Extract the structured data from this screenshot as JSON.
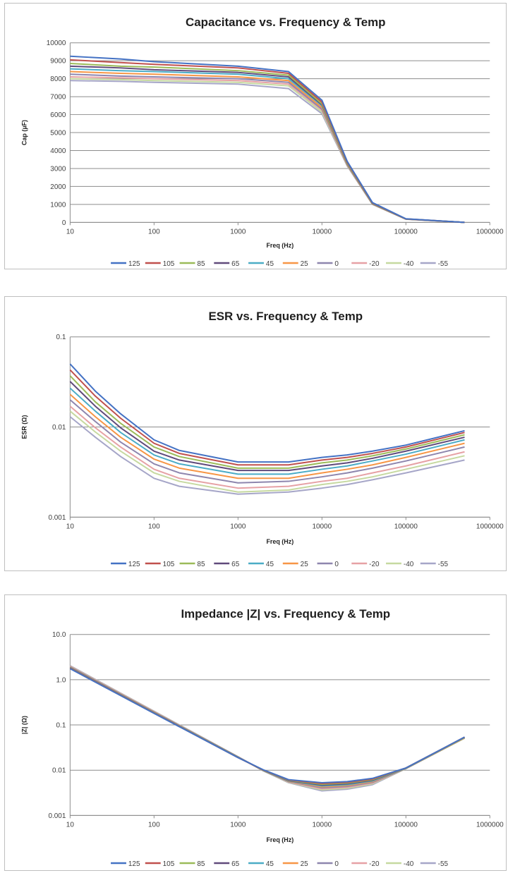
{
  "chart_data": [
    {
      "type": "line",
      "title": "Capacitance vs. Frequency & Temp",
      "xlabel": "Freq (Hz)",
      "ylabel": "Cap (µF)",
      "xscale": "log",
      "yscale": "linear",
      "xlim": [
        10,
        1000000
      ],
      "ylim": [
        0,
        10000
      ],
      "xticks": [
        "10",
        "100",
        "1000",
        "10000",
        "100000",
        "1000000"
      ],
      "yticks": [
        "0",
        "1000",
        "2000",
        "3000",
        "4000",
        "5000",
        "6000",
        "7000",
        "8000",
        "9000",
        "10000"
      ],
      "grid": "horizontal",
      "legend": "bottom",
      "x": [
        10,
        40,
        100,
        1000,
        4000,
        10000,
        20000,
        40000,
        100000,
        500000
      ],
      "series": [
        {
          "name": "125",
          "color": "#4472c4",
          "values": [
            9250,
            9100,
            8950,
            8700,
            8400,
            6800,
            3400,
            1100,
            200,
            0
          ]
        },
        {
          "name": "105",
          "color": "#c0504d",
          "values": [
            9050,
            8900,
            8800,
            8600,
            8300,
            6700,
            3350,
            1080,
            195,
            0
          ]
        },
        {
          "name": "85",
          "color": "#9bbb59",
          "values": [
            8850,
            8700,
            8650,
            8450,
            8200,
            6600,
            3300,
            1060,
            190,
            0
          ]
        },
        {
          "name": "65",
          "color": "#604a7b",
          "values": [
            8700,
            8600,
            8500,
            8350,
            8100,
            6550,
            3280,
            1050,
            188,
            0
          ]
        },
        {
          "name": "45",
          "color": "#4bacc6",
          "values": [
            8550,
            8450,
            8400,
            8250,
            8000,
            6500,
            3260,
            1040,
            186,
            0
          ]
        },
        {
          "name": "25",
          "color": "#f79646",
          "values": [
            8400,
            8300,
            8250,
            8100,
            7900,
            6400,
            3230,
            1030,
            184,
            0
          ]
        },
        {
          "name": "0",
          "color": "#8e86ae",
          "values": [
            8250,
            8150,
            8100,
            8000,
            7800,
            6300,
            3200,
            1020,
            182,
            0
          ]
        },
        {
          "name": "-20",
          "color": "#e6a1a5",
          "values": [
            8100,
            8050,
            8000,
            7900,
            7700,
            6250,
            3180,
            1010,
            180,
            0
          ]
        },
        {
          "name": "-40",
          "color": "#c6d9a0",
          "values": [
            8000,
            7950,
            7900,
            7800,
            7600,
            6150,
            3160,
            1005,
            178,
            0
          ]
        },
        {
          "name": "-55",
          "color": "#a6a6c8",
          "values": [
            7900,
            7850,
            7800,
            7700,
            7450,
            6050,
            3140,
            1000,
            176,
            0
          ]
        }
      ]
    },
    {
      "type": "line",
      "title": "ESR vs. Frequency & Temp",
      "xlabel": "Freq (Hz)",
      "ylabel": "ESR (Ω)",
      "xscale": "log",
      "yscale": "log",
      "xlim": [
        10,
        1000000
      ],
      "ylim": [
        0.001,
        0.1
      ],
      "xticks": [
        "10",
        "100",
        "1000",
        "10000",
        "100000",
        "1000000"
      ],
      "yticks": [
        "0.001",
        "0.01",
        "0.1"
      ],
      "grid": "horizontal",
      "legend": "bottom",
      "x": [
        10,
        20,
        40,
        100,
        200,
        1000,
        4000,
        10000,
        20000,
        40000,
        100000,
        500000
      ],
      "series": [
        {
          "name": "125",
          "color": "#4472c4",
          "values": [
            0.05,
            0.025,
            0.014,
            0.0072,
            0.0055,
            0.0041,
            0.0041,
            0.0046,
            0.0049,
            0.0054,
            0.0063,
            0.0091
          ]
        },
        {
          "name": "105",
          "color": "#c0504d",
          "values": [
            0.043,
            0.022,
            0.0125,
            0.0066,
            0.0051,
            0.0038,
            0.0038,
            0.0043,
            0.0046,
            0.0051,
            0.006,
            0.0087
          ]
        },
        {
          "name": "85",
          "color": "#9bbb59",
          "values": [
            0.037,
            0.019,
            0.011,
            0.006,
            0.0047,
            0.0035,
            0.0035,
            0.004,
            0.0043,
            0.0048,
            0.0057,
            0.0082
          ]
        },
        {
          "name": "65",
          "color": "#604a7b",
          "values": [
            0.032,
            0.017,
            0.0098,
            0.0054,
            0.0043,
            0.0033,
            0.0033,
            0.0037,
            0.004,
            0.0045,
            0.0054,
            0.0077
          ]
        },
        {
          "name": "45",
          "color": "#4bacc6",
          "values": [
            0.027,
            0.015,
            0.0087,
            0.0049,
            0.0039,
            0.003,
            0.003,
            0.0034,
            0.0037,
            0.0042,
            0.005,
            0.0072
          ]
        },
        {
          "name": "25",
          "color": "#f79646",
          "values": [
            0.023,
            0.013,
            0.0077,
            0.0044,
            0.0035,
            0.0027,
            0.0027,
            0.0031,
            0.0034,
            0.0038,
            0.0046,
            0.0066
          ]
        },
        {
          "name": "0",
          "color": "#8e86ae",
          "values": [
            0.02,
            0.0115,
            0.0068,
            0.0039,
            0.0031,
            0.0024,
            0.0025,
            0.0028,
            0.0031,
            0.0035,
            0.0042,
            0.006
          ]
        },
        {
          "name": "-20",
          "color": "#e6a1a5",
          "values": [
            0.017,
            0.0098,
            0.006,
            0.0034,
            0.0027,
            0.0021,
            0.0022,
            0.0025,
            0.0027,
            0.0031,
            0.0037,
            0.0053
          ]
        },
        {
          "name": "-40",
          "color": "#c6d9a0",
          "values": [
            0.015,
            0.0088,
            0.0054,
            0.0031,
            0.0025,
            0.0019,
            0.002,
            0.0023,
            0.0025,
            0.0028,
            0.0034,
            0.0048
          ]
        },
        {
          "name": "-55",
          "color": "#a6a6c8",
          "values": [
            0.013,
            0.0077,
            0.0047,
            0.0027,
            0.0022,
            0.0018,
            0.0019,
            0.0021,
            0.0023,
            0.0026,
            0.0031,
            0.0043
          ]
        }
      ]
    },
    {
      "type": "line",
      "title": "Impedance |Z| vs. Frequency & Temp",
      "xlabel": "Freq (Hz)",
      "ylabel": "|Z| (Ω)",
      "xscale": "log",
      "yscale": "log",
      "xlim": [
        10,
        1000000
      ],
      "ylim": [
        0.001,
        10
      ],
      "xticks": [
        "10",
        "100",
        "1000",
        "10000",
        "100000",
        "1000000"
      ],
      "yticks": [
        "0.001",
        "0.01",
        "0.1",
        "1.0",
        "10.0"
      ],
      "grid": "horizontal",
      "legend": "bottom",
      "x": [
        10,
        100,
        1000,
        2000,
        4000,
        10000,
        20000,
        40000,
        100000,
        500000
      ],
      "series": [
        {
          "name": "125",
          "color": "#4472c4",
          "values": [
            1.75,
            0.18,
            0.019,
            0.0102,
            0.0062,
            0.0053,
            0.0056,
            0.0066,
            0.0112,
            0.054
          ]
        },
        {
          "name": "105",
          "color": "#c0504d",
          "values": [
            1.78,
            0.182,
            0.019,
            0.0101,
            0.0061,
            0.0051,
            0.0054,
            0.0064,
            0.0112,
            0.054
          ]
        },
        {
          "name": "85",
          "color": "#9bbb59",
          "values": [
            1.8,
            0.184,
            0.0192,
            0.01,
            0.006,
            0.0049,
            0.0052,
            0.0062,
            0.0111,
            0.053
          ]
        },
        {
          "name": "65",
          "color": "#604a7b",
          "values": [
            1.83,
            0.186,
            0.0193,
            0.01,
            0.0059,
            0.0047,
            0.005,
            0.006,
            0.0111,
            0.053
          ]
        },
        {
          "name": "45",
          "color": "#4bacc6",
          "values": [
            1.86,
            0.188,
            0.0194,
            0.0099,
            0.0058,
            0.0045,
            0.0048,
            0.0058,
            0.011,
            0.053
          ]
        },
        {
          "name": "25",
          "color": "#f79646",
          "values": [
            1.89,
            0.19,
            0.0195,
            0.0099,
            0.0057,
            0.0043,
            0.0046,
            0.0056,
            0.011,
            0.052
          ]
        },
        {
          "name": "0",
          "color": "#8e86ae",
          "values": [
            1.93,
            0.193,
            0.0196,
            0.0098,
            0.0056,
            0.0041,
            0.0044,
            0.0054,
            0.0109,
            0.052
          ]
        },
        {
          "name": "-20",
          "color": "#e6a1a5",
          "values": [
            1.97,
            0.196,
            0.0197,
            0.0098,
            0.0055,
            0.0039,
            0.0042,
            0.0052,
            0.0109,
            0.052
          ]
        },
        {
          "name": "-40",
          "color": "#c6d9a0",
          "values": [
            2.0,
            0.199,
            0.0198,
            0.0097,
            0.0054,
            0.0037,
            0.004,
            0.005,
            0.0108,
            0.051
          ]
        },
        {
          "name": "-55",
          "color": "#a6a6c8",
          "values": [
            2.04,
            0.202,
            0.0199,
            0.0097,
            0.0053,
            0.0035,
            0.0038,
            0.0048,
            0.0108,
            0.051
          ]
        }
      ]
    }
  ]
}
